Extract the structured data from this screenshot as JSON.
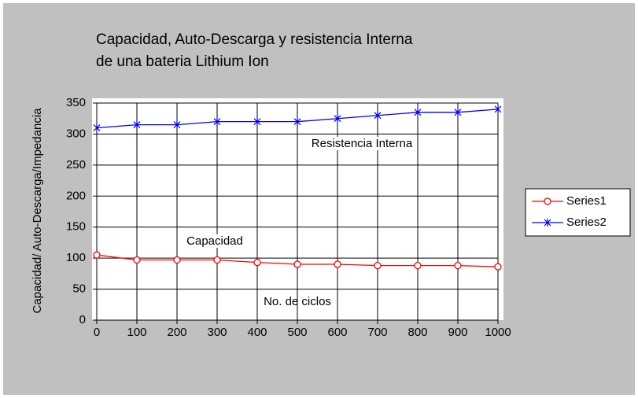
{
  "chart_data": {
    "type": "line",
    "title": "Capacidad, Auto-Descarga y resistencia Interna",
    "subtitle": "de una bateria Lithium Ion",
    "x_label": "No. de ciclos",
    "y_label": "Capacidad/ Auto-Descarga/Impedancia",
    "annotations": [
      "Resistencia Interna",
      "Capacidad"
    ],
    "x": [
      0,
      100,
      200,
      300,
      400,
      500,
      600,
      700,
      800,
      900,
      1000
    ],
    "series": [
      {
        "name": "Series1",
        "color": "#ff0000",
        "values": [
          105,
          97,
          97,
          97,
          93,
          90,
          90,
          88,
          88,
          88,
          86
        ]
      },
      {
        "name": "Series2",
        "color": "#0000ff",
        "values": [
          310,
          315,
          315,
          320,
          320,
          320,
          325,
          330,
          335,
          335,
          340
        ]
      }
    ],
    "xlim": [
      0,
      1000
    ],
    "xticks": [
      0,
      100,
      200,
      300,
      400,
      500,
      600,
      700,
      800,
      900,
      1000
    ],
    "ylim": [
      0,
      350
    ],
    "yticks": [
      0,
      50,
      100,
      150,
      200,
      250,
      300,
      350
    ],
    "grid": true,
    "legend": "right"
  }
}
